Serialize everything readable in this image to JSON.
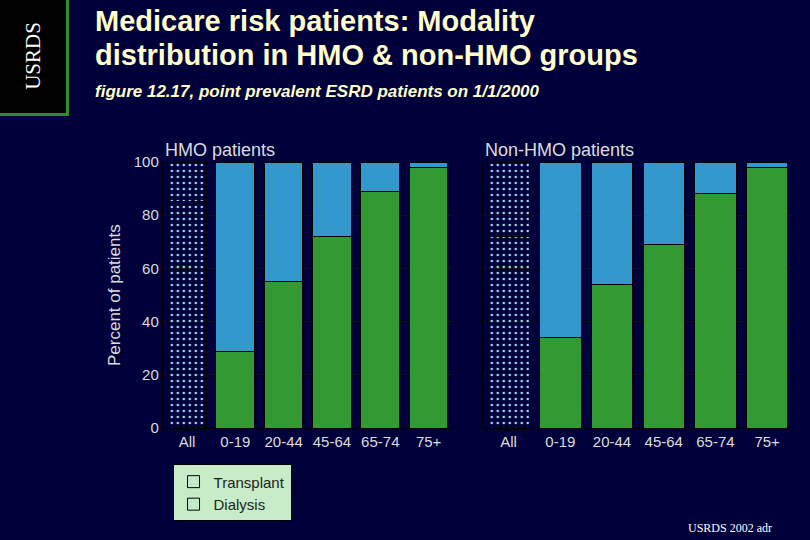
{
  "title": "Medicare risk patients: Modality distribution in HMO & non-HMO groups",
  "title_lines": [
    "Medicare risk patients: Modality",
    "distribution in HMO & non-HMO groups"
  ],
  "subtitle": "figure 12.17, point prevalent ESRD patients on 1/1/2000",
  "side_label": "USRDS",
  "source": "USRDS 2002 adr",
  "chart_data": [
    {
      "type": "bar",
      "stacked": true,
      "title": "HMO patients",
      "ylabel": "Percent of patients",
      "categories": [
        "All",
        "0-19",
        "20-44",
        "45-64",
        "65-74",
        "75+"
      ],
      "series": [
        {
          "name": "Dialysis",
          "color": "#339933",
          "values": [
            85,
            29,
            55,
            72,
            89,
            98
          ]
        },
        {
          "name": "Transplant",
          "color": "#3399cc",
          "values": [
            15,
            71,
            45,
            28,
            11,
            2
          ]
        }
      ],
      "ylim": [
        0,
        100
      ],
      "yticks": [
        0,
        20,
        40,
        60,
        80,
        100
      ],
      "grid": true,
      "legend": "bottom left"
    },
    {
      "type": "bar",
      "stacked": true,
      "title": "Non-HMO patients",
      "categories": [
        "All",
        "0-19",
        "20-44",
        "45-64",
        "65-74",
        "75+"
      ],
      "series": [
        {
          "name": "Dialysis",
          "color": "#339933",
          "values": [
            72,
            34,
            54,
            69,
            88,
            98
          ]
        },
        {
          "name": "Transplant",
          "color": "#3399cc",
          "values": [
            28,
            66,
            46,
            31,
            12,
            2
          ]
        }
      ],
      "ylim": [
        0,
        100
      ],
      "yticks": [
        0,
        20,
        40,
        60,
        80,
        100
      ],
      "grid": true,
      "tick_labels": "x"
    }
  ]
}
